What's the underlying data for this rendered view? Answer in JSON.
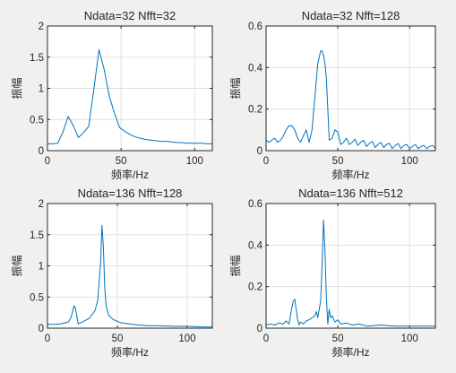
{
  "chart_data": [
    {
      "type": "line",
      "title": "Ndata=32 Nfft=32",
      "xlabel": "频率/Hz",
      "ylabel": "振幅",
      "xlim": [
        0,
        112
      ],
      "ylim": [
        0,
        2
      ],
      "xticks": [
        "0",
        "50",
        "100"
      ],
      "yticks": [
        "0",
        "0.5",
        "1",
        "1.5",
        "2"
      ],
      "grid": true,
      "series": [
        {
          "color": "#0072BD",
          "x": [
            0,
            3.5,
            7,
            10.5,
            14,
            17.5,
            21,
            24.5,
            28,
            31.5,
            35,
            38.5,
            42,
            45.5,
            49,
            52.5,
            56,
            59.5,
            63,
            66.5,
            70,
            73.5,
            77,
            80.5,
            84,
            87.5,
            91,
            94.5,
            98,
            101.5,
            105,
            108.5,
            112
          ],
          "y": [
            0.11,
            0.11,
            0.12,
            0.3,
            0.55,
            0.4,
            0.21,
            0.29,
            0.39,
            0.99,
            1.62,
            1.3,
            0.87,
            0.6,
            0.37,
            0.31,
            0.26,
            0.22,
            0.2,
            0.18,
            0.17,
            0.16,
            0.15,
            0.15,
            0.14,
            0.13,
            0.13,
            0.12,
            0.12,
            0.12,
            0.12,
            0.11,
            0.11
          ]
        }
      ]
    },
    {
      "type": "line",
      "title": "Ndata=32 Nfft=128",
      "xlabel": "频率/Hz",
      "ylabel": "振幅",
      "xlim": [
        0,
        118
      ],
      "ylim": [
        0,
        0.6
      ],
      "xticks": [
        "0",
        "50",
        "100"
      ],
      "yticks": [
        "0",
        "0.2",
        "0.4",
        "0.6"
      ],
      "grid": true,
      "series": [
        {
          "color": "#0072BD",
          "x": [
            0,
            2,
            4,
            6,
            8,
            10,
            12,
            14,
            16,
            18,
            20,
            22,
            24,
            26,
            28,
            30,
            32,
            34,
            36,
            38,
            39,
            40,
            41,
            42,
            44,
            46,
            48,
            50,
            52,
            54,
            56,
            58,
            60,
            62,
            64,
            66,
            68,
            70,
            72,
            74,
            76,
            78,
            80,
            82,
            84,
            86,
            88,
            90,
            92,
            94,
            96,
            98,
            100,
            102,
            104,
            106,
            108,
            110,
            112,
            114,
            116,
            118
          ],
          "y": [
            0.05,
            0.04,
            0.05,
            0.06,
            0.04,
            0.05,
            0.07,
            0.1,
            0.12,
            0.12,
            0.1,
            0.06,
            0.04,
            0.07,
            0.1,
            0.04,
            0.1,
            0.26,
            0.42,
            0.48,
            0.48,
            0.46,
            0.42,
            0.35,
            0.05,
            0.06,
            0.1,
            0.09,
            0.03,
            0.04,
            0.06,
            0.03,
            0.04,
            0.055,
            0.025,
            0.04,
            0.05,
            0.02,
            0.035,
            0.045,
            0.015,
            0.03,
            0.04,
            0.015,
            0.03,
            0.035,
            0.01,
            0.025,
            0.035,
            0.01,
            0.025,
            0.03,
            0.01,
            0.02,
            0.03,
            0.01,
            0.02,
            0.025,
            0.01,
            0.02,
            0.025,
            0.01
          ]
        }
      ]
    },
    {
      "type": "line",
      "title": "Ndata=136 Nfft=128",
      "xlabel": "频率/Hz",
      "ylabel": "振幅",
      "xlim": [
        0,
        118
      ],
      "ylim": [
        0,
        2
      ],
      "xticks": [
        "0",
        "50",
        "100"
      ],
      "yticks": [
        "0",
        "0.5",
        "1",
        "1.5",
        "2"
      ],
      "grid": true,
      "series": [
        {
          "color": "#0072BD",
          "x": [
            0,
            5,
            10,
            15,
            17,
            19,
            20,
            22,
            25,
            30,
            34,
            36,
            38,
            39,
            40,
            41,
            42,
            44,
            47,
            52,
            58,
            65,
            72,
            80,
            90,
            100,
            110,
            118
          ],
          "y": [
            0.06,
            0.06,
            0.07,
            0.1,
            0.18,
            0.36,
            0.32,
            0.07,
            0.1,
            0.16,
            0.28,
            0.45,
            1.05,
            1.65,
            1.3,
            0.65,
            0.35,
            0.2,
            0.14,
            0.09,
            0.07,
            0.05,
            0.04,
            0.04,
            0.03,
            0.03,
            0.02,
            0.02
          ]
        }
      ]
    },
    {
      "type": "line",
      "title": "Ndata=136 Nfft=512",
      "xlabel": "频率/Hz",
      "ylabel": "振幅",
      "xlim": [
        0,
        118
      ],
      "ylim": [
        0,
        0.6
      ],
      "xticks": [
        "0",
        "50",
        "100"
      ],
      "yticks": [
        "0",
        "0.2",
        "0.4",
        "0.6"
      ],
      "grid": true,
      "series": [
        {
          "color": "#0072BD",
          "x": [
            0,
            3,
            6,
            9,
            12,
            14,
            16,
            17,
            18,
            19,
            20,
            21,
            22,
            23,
            24,
            26,
            28,
            30,
            32,
            34,
            35,
            36,
            37,
            38,
            39,
            40,
            41,
            42,
            43,
            44,
            45,
            46,
            48,
            50,
            52,
            56,
            60,
            65,
            70,
            80,
            90,
            100,
            110,
            118
          ],
          "y": [
            0.015,
            0.02,
            0.015,
            0.025,
            0.02,
            0.035,
            0.02,
            0.06,
            0.1,
            0.13,
            0.14,
            0.09,
            0.04,
            0.015,
            0.03,
            0.02,
            0.035,
            0.04,
            0.05,
            0.06,
            0.08,
            0.05,
            0.09,
            0.13,
            0.3,
            0.52,
            0.38,
            0.15,
            0.02,
            0.09,
            0.05,
            0.06,
            0.03,
            0.04,
            0.02,
            0.025,
            0.015,
            0.02,
            0.01,
            0.015,
            0.01,
            0.01,
            0.01,
            0.01
          ]
        }
      ]
    }
  ]
}
